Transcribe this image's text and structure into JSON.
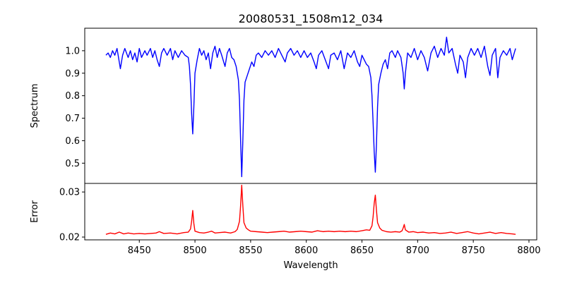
{
  "chart_data": [
    {
      "type": "line",
      "title": "20080531_1508m12_034",
      "xlabel": "",
      "ylabel": "Spectrum",
      "xlim": [
        8401,
        8807
      ],
      "ylim": [
        0.41,
        1.1
      ],
      "yticks": [
        0.5,
        0.6,
        0.7,
        0.8,
        0.9,
        1.0
      ],
      "ytick_labels": [
        "0.5",
        "0.6",
        "0.7",
        "0.8",
        "0.9",
        "1.0"
      ],
      "grid": false,
      "series": [
        {
          "name": "spectrum",
          "color": "#0000ff",
          "x": [
            8420,
            8422,
            8424,
            8426,
            8428,
            8430,
            8432,
            8433,
            8435,
            8437,
            8440,
            8442,
            8444,
            8446,
            8448,
            8450,
            8452,
            8455,
            8457,
            8460,
            8462,
            8464,
            8466,
            8468,
            8470,
            8472,
            8475,
            8478,
            8480,
            8482,
            8485,
            8488,
            8491,
            8494,
            8495,
            8496,
            8497,
            8498,
            8499,
            8500,
            8502,
            8504,
            8506,
            8508,
            8510,
            8512,
            8514,
            8516,
            8518,
            8520,
            8522,
            8524,
            8527,
            8529,
            8531,
            8533,
            8535,
            8537,
            8539,
            8540,
            8541,
            8542,
            8543,
            8544,
            8545,
            8547,
            8549,
            8551,
            8553,
            8555,
            8557,
            8560,
            8563,
            8566,
            8569,
            8572,
            8575,
            8578,
            8581,
            8583,
            8586,
            8589,
            8592,
            8595,
            8598,
            8601,
            8604,
            8607,
            8609,
            8611,
            8614,
            8617,
            8620,
            8622,
            8625,
            8628,
            8631,
            8634,
            8637,
            8640,
            8643,
            8646,
            8648,
            8650,
            8652,
            8654,
            8656,
            8658,
            8659,
            8660,
            8661,
            8662,
            8663,
            8664,
            8665,
            8667,
            8669,
            8671,
            8673,
            8675,
            8677,
            8680,
            8682,
            8685,
            8687,
            8688,
            8689,
            8691,
            8694,
            8697,
            8700,
            8703,
            8706,
            8709,
            8712,
            8715,
            8718,
            8721,
            8724,
            8726,
            8728,
            8731,
            8734,
            8736,
            8738,
            8741,
            8743,
            8745,
            8748,
            8751,
            8754,
            8757,
            8760,
            8763,
            8765,
            8767,
            8770,
            8772,
            8774,
            8777,
            8780,
            8783,
            8785,
            8788
          ],
          "y": [
            0.98,
            0.99,
            0.97,
            1.0,
            0.98,
            1.01,
            0.95,
            0.92,
            0.98,
            1.01,
            0.97,
            1.0,
            0.96,
            0.99,
            0.95,
            1.01,
            0.97,
            1.0,
            0.98,
            1.01,
            0.97,
            1.0,
            0.96,
            0.93,
            0.99,
            1.01,
            0.98,
            1.01,
            0.96,
            1.0,
            0.97,
            1.0,
            0.98,
            0.97,
            0.93,
            0.85,
            0.72,
            0.63,
            0.75,
            0.9,
            0.96,
            1.01,
            0.98,
            1.0,
            0.96,
            0.99,
            0.92,
            0.99,
            1.02,
            0.97,
            1.01,
            0.98,
            0.93,
            0.99,
            1.01,
            0.97,
            0.96,
            0.93,
            0.87,
            0.78,
            0.6,
            0.44,
            0.6,
            0.78,
            0.86,
            0.89,
            0.92,
            0.95,
            0.93,
            0.98,
            0.99,
            0.97,
            1.0,
            0.98,
            1.0,
            0.97,
            1.01,
            0.98,
            0.95,
            0.99,
            1.01,
            0.98,
            1.0,
            0.97,
            1.0,
            0.97,
            0.99,
            0.95,
            0.92,
            0.98,
            1.0,
            0.96,
            0.92,
            0.98,
            0.99,
            0.96,
            1.0,
            0.92,
            0.99,
            0.97,
            1.0,
            0.95,
            0.93,
            0.98,
            0.96,
            0.94,
            0.93,
            0.88,
            0.8,
            0.68,
            0.55,
            0.46,
            0.58,
            0.75,
            0.85,
            0.9,
            0.94,
            0.96,
            0.92,
            0.99,
            1.0,
            0.97,
            1.0,
            0.97,
            0.9,
            0.83,
            0.9,
            0.99,
            0.97,
            1.01,
            0.96,
            1.0,
            0.97,
            0.91,
            0.99,
            1.02,
            0.97,
            1.01,
            0.98,
            1.06,
            0.99,
            1.01,
            0.94,
            0.9,
            0.98,
            0.95,
            0.88,
            0.97,
            1.01,
            0.98,
            1.01,
            0.97,
            1.02,
            0.93,
            0.89,
            0.98,
            1.01,
            0.88,
            0.97,
            1.0,
            0.98,
            1.01,
            0.96,
            1.01
          ]
        }
      ]
    },
    {
      "type": "line",
      "title": "",
      "xlabel": "Wavelength",
      "ylabel": "Error",
      "xlim": [
        8401,
        8807
      ],
      "ylim": [
        0.01938,
        0.0319
      ],
      "xticks": [
        8450,
        8500,
        8550,
        8600,
        8650,
        8700,
        8750,
        8800
      ],
      "xtick_labels": [
        "8450",
        "8500",
        "8550",
        "8600",
        "8650",
        "8700",
        "8750",
        "8800"
      ],
      "yticks": [
        0.02,
        0.03
      ],
      "ytick_labels": [
        "0.02",
        "0.03"
      ],
      "grid": false,
      "series": [
        {
          "name": "error",
          "color": "#ff0000",
          "x": [
            8420,
            8424,
            8428,
            8432,
            8436,
            8440,
            8445,
            8450,
            8455,
            8460,
            8465,
            8468,
            8472,
            8478,
            8484,
            8490,
            8494,
            8496,
            8497,
            8498,
            8499,
            8500,
            8504,
            8508,
            8512,
            8515,
            8518,
            8522,
            8527,
            8532,
            8536,
            8538,
            8540,
            8541,
            8542,
            8543,
            8544,
            8546,
            8548,
            8550,
            8555,
            8560,
            8565,
            8570,
            8575,
            8580,
            8585,
            8590,
            8595,
            8600,
            8605,
            8610,
            8615,
            8620,
            8625,
            8630,
            8635,
            8640,
            8645,
            8650,
            8654,
            8657,
            8659,
            8660,
            8661,
            8662,
            8663,
            8664,
            8666,
            8668,
            8672,
            8676,
            8680,
            8684,
            8686,
            8687,
            8688,
            8689,
            8692,
            8696,
            8700,
            8705,
            8710,
            8715,
            8720,
            8725,
            8730,
            8735,
            8740,
            8745,
            8750,
            8755,
            8760,
            8765,
            8770,
            8775,
            8780,
            8785,
            8788
          ],
          "y": [
            0.0206,
            0.0209,
            0.0207,
            0.0211,
            0.0207,
            0.0209,
            0.0207,
            0.0208,
            0.0207,
            0.0208,
            0.0209,
            0.0212,
            0.0208,
            0.0209,
            0.0207,
            0.021,
            0.0211,
            0.0218,
            0.0235,
            0.0259,
            0.023,
            0.0213,
            0.021,
            0.0209,
            0.0211,
            0.0213,
            0.0209,
            0.021,
            0.0211,
            0.0209,
            0.0212,
            0.0217,
            0.0235,
            0.027,
            0.0315,
            0.027,
            0.0232,
            0.022,
            0.0216,
            0.0213,
            0.0212,
            0.0211,
            0.021,
            0.0211,
            0.0212,
            0.0213,
            0.0211,
            0.0212,
            0.0213,
            0.0212,
            0.0211,
            0.0214,
            0.0212,
            0.0213,
            0.0212,
            0.0213,
            0.0212,
            0.0213,
            0.0212,
            0.0214,
            0.0216,
            0.0215,
            0.0225,
            0.0245,
            0.0275,
            0.0293,
            0.026,
            0.0232,
            0.022,
            0.0215,
            0.0212,
            0.0211,
            0.0212,
            0.0211,
            0.0214,
            0.022,
            0.0228,
            0.0216,
            0.0211,
            0.0212,
            0.021,
            0.0211,
            0.0209,
            0.021,
            0.0208,
            0.0209,
            0.0211,
            0.0208,
            0.021,
            0.0212,
            0.0209,
            0.0207,
            0.0209,
            0.0211,
            0.0208,
            0.021,
            0.0208,
            0.0207,
            0.0206
          ]
        }
      ]
    }
  ]
}
